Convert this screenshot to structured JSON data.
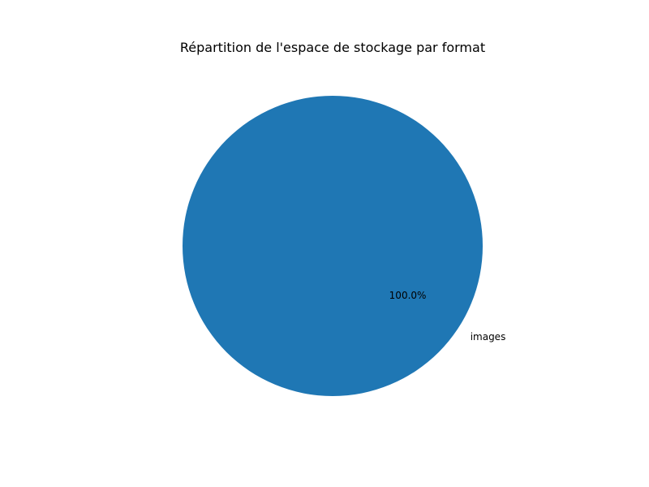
{
  "chart_data": {
    "type": "pie",
    "title": "Répartition de l'espace de stockage par format",
    "labels": [
      "images"
    ],
    "values": [
      100
    ],
    "percent_labels": [
      "100.0%"
    ],
    "colors": [
      "#1f77b4"
    ],
    "legend": "none"
  }
}
